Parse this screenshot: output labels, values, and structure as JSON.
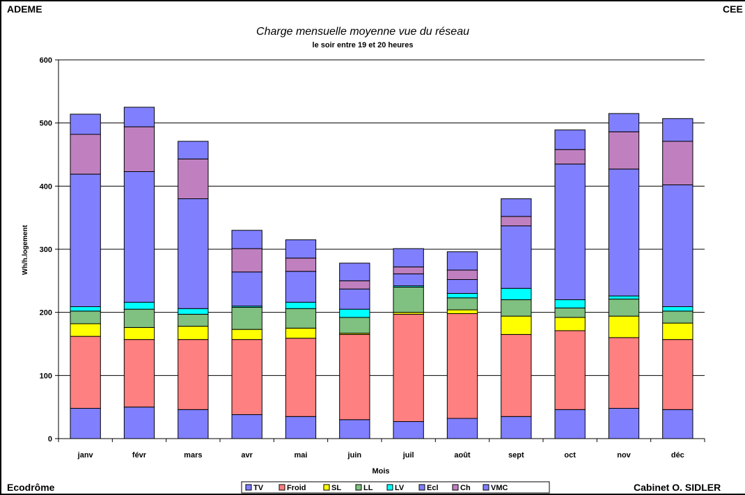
{
  "header": {
    "left": "ADEME",
    "right": "CEE"
  },
  "footer": {
    "left": "Ecodrôme",
    "right": "Cabinet O. SIDLER"
  },
  "chart_data": {
    "type": "bar",
    "stacked": true,
    "title": "Charge mensuelle moyenne vue du réseau",
    "subtitle": "le soir entre 19 et 20 heures",
    "xlabel": "Mois",
    "ylabel": "Wh/h.logement",
    "ylim": [
      0,
      600
    ],
    "yticks": [
      0,
      100,
      200,
      300,
      400,
      500,
      600
    ],
    "grid": true,
    "legend_position": "bottom",
    "categories": [
      "janv",
      "févr",
      "mars",
      "avr",
      "mai",
      "juin",
      "juil",
      "août",
      "sept",
      "oct",
      "nov",
      "déc"
    ],
    "series": [
      {
        "name": "TV",
        "color": "#8080ff",
        "values": [
          48,
          50,
          46,
          38,
          35,
          30,
          27,
          32,
          35,
          46,
          48,
          46
        ]
      },
      {
        "name": "Froid",
        "color": "#ff8080",
        "values": [
          114,
          107,
          111,
          119,
          124,
          135,
          170,
          166,
          130,
          125,
          112,
          111
        ]
      },
      {
        "name": "SL",
        "color": "#ffff00",
        "values": [
          20,
          19,
          21,
          16,
          16,
          2,
          3,
          6,
          29,
          21,
          34,
          26
        ]
      },
      {
        "name": "LL",
        "color": "#80c080",
        "values": [
          20,
          29,
          19,
          35,
          31,
          25,
          40,
          19,
          26,
          15,
          27,
          19
        ]
      },
      {
        "name": "LV",
        "color": "#00ffff",
        "values": [
          7,
          11,
          9,
          2,
          10,
          13,
          2,
          7,
          18,
          13,
          5,
          7
        ]
      },
      {
        "name": "Ecl",
        "color": "#8080ff",
        "values": [
          210,
          207,
          174,
          54,
          49,
          32,
          19,
          22,
          99,
          215,
          201,
          193
        ]
      },
      {
        "name": "Ch",
        "color": "#c080c0",
        "values": [
          63,
          71,
          63,
          37,
          21,
          13,
          11,
          15,
          15,
          23,
          59,
          69
        ]
      },
      {
        "name": "VMC",
        "color": "#8080ff",
        "values": [
          32,
          31,
          28,
          29,
          29,
          28,
          29,
          29,
          28,
          31,
          29,
          36
        ]
      }
    ]
  }
}
